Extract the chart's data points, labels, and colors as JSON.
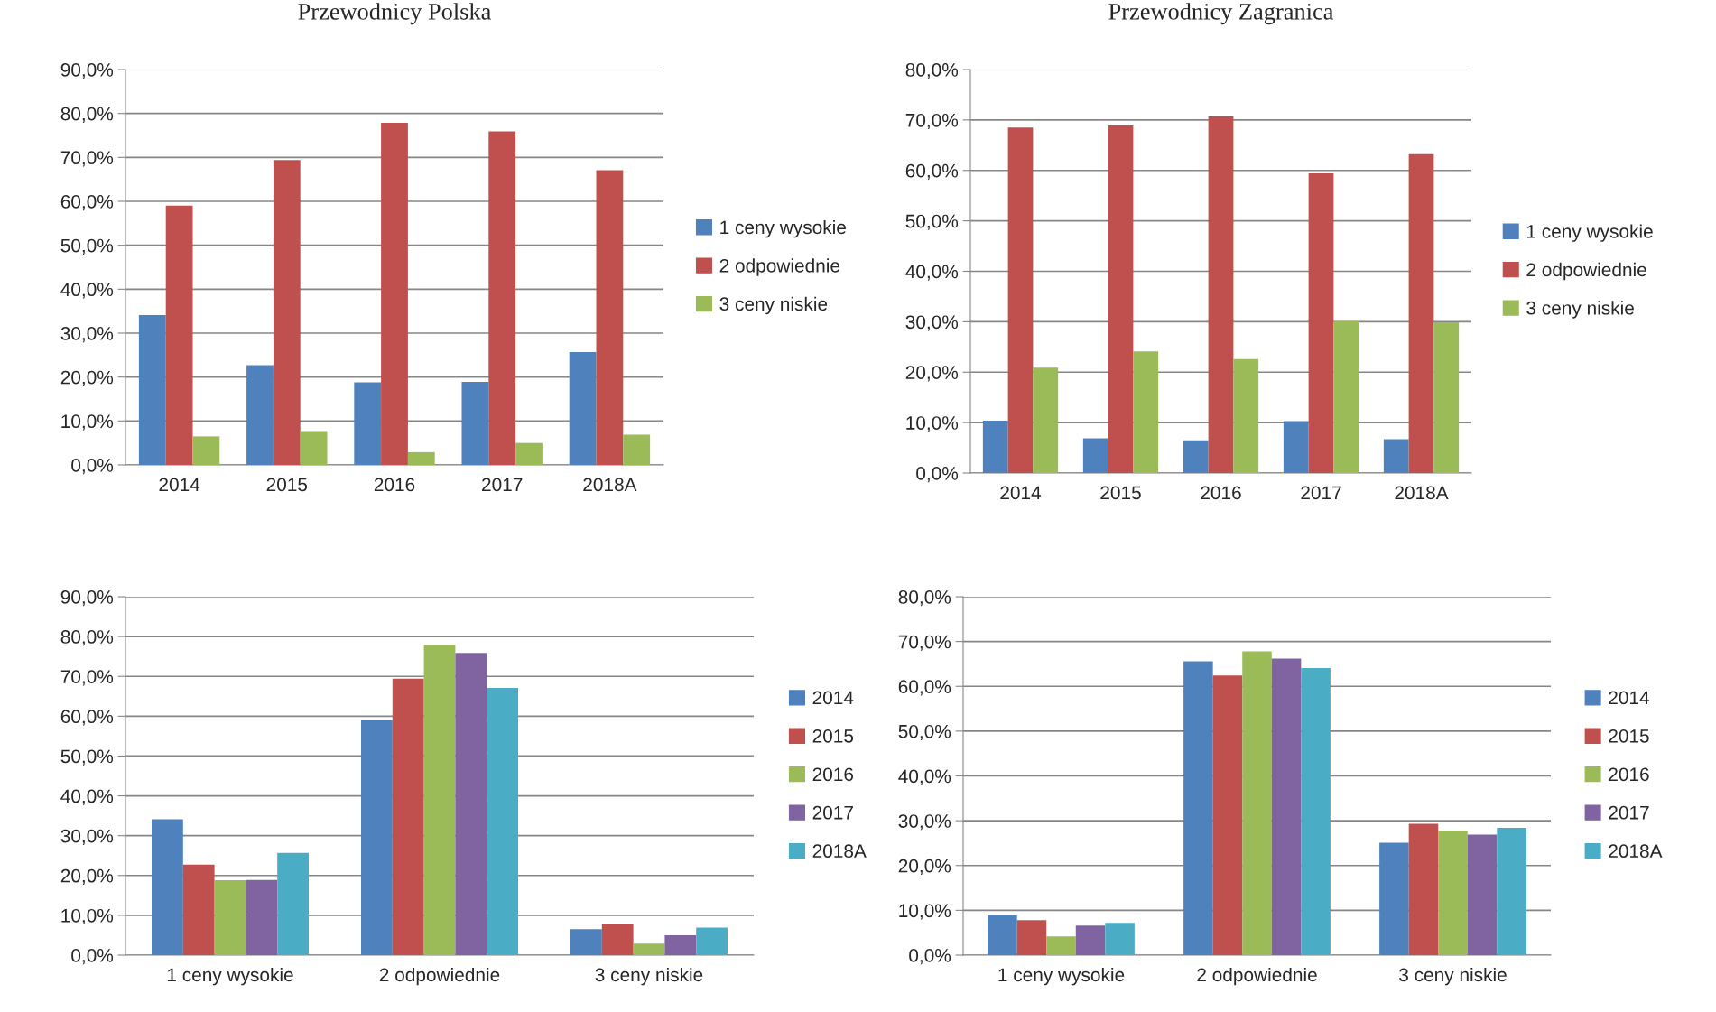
{
  "chart_data": [
    {
      "type": "bar",
      "title": "Przewodnicy Polska",
      "categories": [
        "2014",
        "2015",
        "2016",
        "2017",
        "2018A"
      ],
      "series": [
        {
          "name": "1 ceny wysokie",
          "color": "#4f81bd",
          "values": [
            34.1,
            22.7,
            18.8,
            18.9,
            25.7
          ]
        },
        {
          "name": "2 odpowiednie",
          "color": "#c0504d",
          "values": [
            59.0,
            69.4,
            77.9,
            75.9,
            67.1
          ]
        },
        {
          "name": "3 ceny niskie",
          "color": "#9bbb59",
          "values": [
            6.5,
            7.7,
            2.9,
            5.0,
            6.9
          ]
        }
      ],
      "ylim": [
        0,
        90
      ],
      "yticks": [
        {
          "value": 0,
          "label": "0,0%"
        },
        {
          "value": 10,
          "label": "10,0%"
        },
        {
          "value": 20,
          "label": "20,0%"
        },
        {
          "value": 30,
          "label": "30,0%"
        },
        {
          "value": 40,
          "label": "40,0%"
        },
        {
          "value": 50,
          "label": "50,0%"
        },
        {
          "value": 60,
          "label": "60,0%"
        },
        {
          "value": 70,
          "label": "70,0%"
        },
        {
          "value": 80,
          "label": "80,0%"
        },
        {
          "value": 90,
          "label": "90,0%"
        }
      ],
      "grid": "y",
      "legend": "right"
    },
    {
      "type": "bar",
      "title": "Przewodnicy Zagranica",
      "categories": [
        "2014",
        "2015",
        "2016",
        "2017",
        "2018A"
      ],
      "series": [
        {
          "name": "1 ceny wysokie",
          "color": "#4f81bd",
          "values": [
            10.4,
            6.9,
            6.5,
            10.3,
            6.7
          ]
        },
        {
          "name": "2 odpowiednie",
          "color": "#c0504d",
          "values": [
            68.5,
            68.9,
            70.7,
            59.4,
            63.2
          ]
        },
        {
          "name": "3 ceny niskie",
          "color": "#9bbb59",
          "values": [
            20.9,
            24.1,
            22.6,
            30.1,
            29.9
          ]
        }
      ],
      "ylim": [
        0,
        80
      ],
      "yticks": [
        {
          "value": 0,
          "label": "0,0%"
        },
        {
          "value": 10,
          "label": "10,0%"
        },
        {
          "value": 20,
          "label": "20,0%"
        },
        {
          "value": 30,
          "label": "30,0%"
        },
        {
          "value": 40,
          "label": "40,0%"
        },
        {
          "value": 50,
          "label": "50,0%"
        },
        {
          "value": 60,
          "label": "60,0%"
        },
        {
          "value": 70,
          "label": "70,0%"
        },
        {
          "value": 80,
          "label": "80,0%"
        }
      ],
      "grid": "y",
      "legend": "right"
    },
    {
      "type": "bar",
      "categories": [
        "1 ceny wysokie",
        "2 odpowiednie",
        "3 ceny niskie"
      ],
      "series": [
        {
          "name": "2014",
          "color": "#4f81bd",
          "values": [
            34.1,
            59.0,
            6.5
          ]
        },
        {
          "name": "2015",
          "color": "#c0504d",
          "values": [
            22.7,
            69.4,
            7.7
          ]
        },
        {
          "name": "2016",
          "color": "#9bbb59",
          "values": [
            18.8,
            77.9,
            2.9
          ]
        },
        {
          "name": "2017",
          "color": "#8064a2",
          "values": [
            18.9,
            75.9,
            5.0
          ]
        },
        {
          "name": "2018A",
          "color": "#4bacc6",
          "values": [
            25.7,
            67.1,
            6.9
          ]
        }
      ],
      "ylim": [
        0,
        90
      ],
      "yticks": [
        {
          "value": 0,
          "label": "0,0%"
        },
        {
          "value": 10,
          "label": "10,0%"
        },
        {
          "value": 20,
          "label": "20,0%"
        },
        {
          "value": 30,
          "label": "30,0%"
        },
        {
          "value": 40,
          "label": "40,0%"
        },
        {
          "value": 50,
          "label": "50,0%"
        },
        {
          "value": 60,
          "label": "60,0%"
        },
        {
          "value": 70,
          "label": "70,0%"
        },
        {
          "value": 80,
          "label": "80,0%"
        },
        {
          "value": 90,
          "label": "90,0%"
        }
      ],
      "grid": "y",
      "legend": "right"
    },
    {
      "type": "bar",
      "categories": [
        "1 ceny wysokie",
        "2 odpowiednie",
        "3 ceny niskie"
      ],
      "series": [
        {
          "name": "2014",
          "color": "#4f81bd",
          "values": [
            8.9,
            65.6,
            25.1
          ]
        },
        {
          "name": "2015",
          "color": "#c0504d",
          "values": [
            7.8,
            62.4,
            29.3
          ]
        },
        {
          "name": "2016",
          "color": "#9bbb59",
          "values": [
            4.2,
            67.8,
            27.8
          ]
        },
        {
          "name": "2017",
          "color": "#8064a2",
          "values": [
            6.6,
            66.2,
            26.9
          ]
        },
        {
          "name": "2018A",
          "color": "#4bacc6",
          "values": [
            7.2,
            64.1,
            28.4
          ]
        }
      ],
      "ylim": [
        0,
        80
      ],
      "yticks": [
        {
          "value": 0,
          "label": "0,0%"
        },
        {
          "value": 10,
          "label": "10,0%"
        },
        {
          "value": 20,
          "label": "20,0%"
        },
        {
          "value": 30,
          "label": "30,0%"
        },
        {
          "value": 40,
          "label": "40,0%"
        },
        {
          "value": 50,
          "label": "50,0%"
        },
        {
          "value": 60,
          "label": "60,0%"
        },
        {
          "value": 70,
          "label": "70,0%"
        },
        {
          "value": 80,
          "label": "80,0%"
        }
      ],
      "grid": "y",
      "legend": "right"
    }
  ]
}
